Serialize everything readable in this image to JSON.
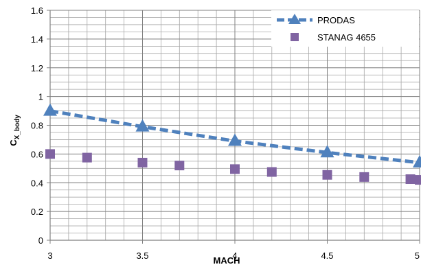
{
  "chart_data": {
    "type": "line",
    "title": "",
    "xlabel": "MACH",
    "ylabel_main": "C",
    "ylabel_sub": "X_body",
    "xlim": [
      3,
      5
    ],
    "ylim": [
      0,
      1.6
    ],
    "x_ticks": [
      3,
      3.5,
      4,
      4.5,
      5
    ],
    "y_ticks": [
      0,
      0.2,
      0.4,
      0.6,
      0.8,
      1,
      1.2,
      1.4,
      1.6
    ],
    "x_minor_step": 0.1,
    "y_minor_step": 0.05,
    "grid": true,
    "legend_position": "top-right",
    "series": [
      {
        "name": "PRODAS",
        "style": "dashed-line-triangle-markers",
        "color": "#4f81bd",
        "x": [
          3,
          3.5,
          4,
          4.5,
          5
        ],
        "y": [
          0.9,
          0.79,
          0.69,
          0.61,
          0.54
        ]
      },
      {
        "name": "STANAG 4655",
        "style": "square-markers",
        "color": "#8064a2",
        "x": [
          3,
          3.2,
          3.5,
          3.7,
          4,
          4.2,
          4.5,
          4.7,
          4.95,
          5
        ],
        "y": [
          0.6,
          0.575,
          0.54,
          0.52,
          0.495,
          0.475,
          0.455,
          0.44,
          0.425,
          0.42
        ]
      }
    ]
  }
}
